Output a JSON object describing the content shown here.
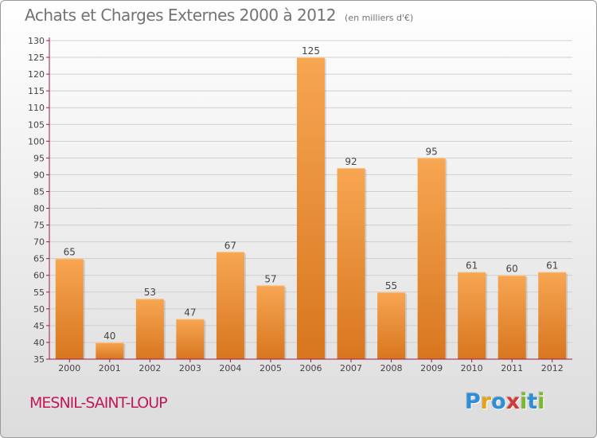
{
  "title": "Achats et Charges Externes 2000 à 2012",
  "unit": "(en milliers d'€)",
  "commune": "MESNIL-SAINT-LOUP",
  "brand": {
    "letters": [
      "P",
      "r",
      "o",
      "x",
      "i",
      "t",
      "i"
    ],
    "colors": [
      "#2e8fd6",
      "#e8a21a",
      "#2e8fd6",
      "#d23a3a",
      "#7cb82f",
      "#2e8fd6",
      "#7cb82f"
    ]
  },
  "colors": {
    "bar_top": "#f7a652",
    "bar_bottom": "#d8761f",
    "axis": "#9a1b4b",
    "grid": "#cfcfcf",
    "text": "#444444"
  },
  "chart_data": {
    "type": "bar",
    "title": "Achats et Charges Externes 2000 à 2012",
    "categories": [
      "2000",
      "2001",
      "2002",
      "2003",
      "2004",
      "2005",
      "2006",
      "2007",
      "2008",
      "2009",
      "2010",
      "2011",
      "2012"
    ],
    "values": [
      65,
      40,
      53,
      47,
      67,
      57,
      125,
      92,
      55,
      95,
      61,
      60,
      61
    ],
    "ylim": [
      35,
      130
    ],
    "yticks": [
      35,
      40,
      45,
      50,
      55,
      60,
      65,
      70,
      75,
      80,
      85,
      90,
      95,
      100,
      105,
      110,
      115,
      120,
      125,
      130
    ],
    "xlabel": "",
    "ylabel": "",
    "grid": true,
    "data_labels": true
  }
}
